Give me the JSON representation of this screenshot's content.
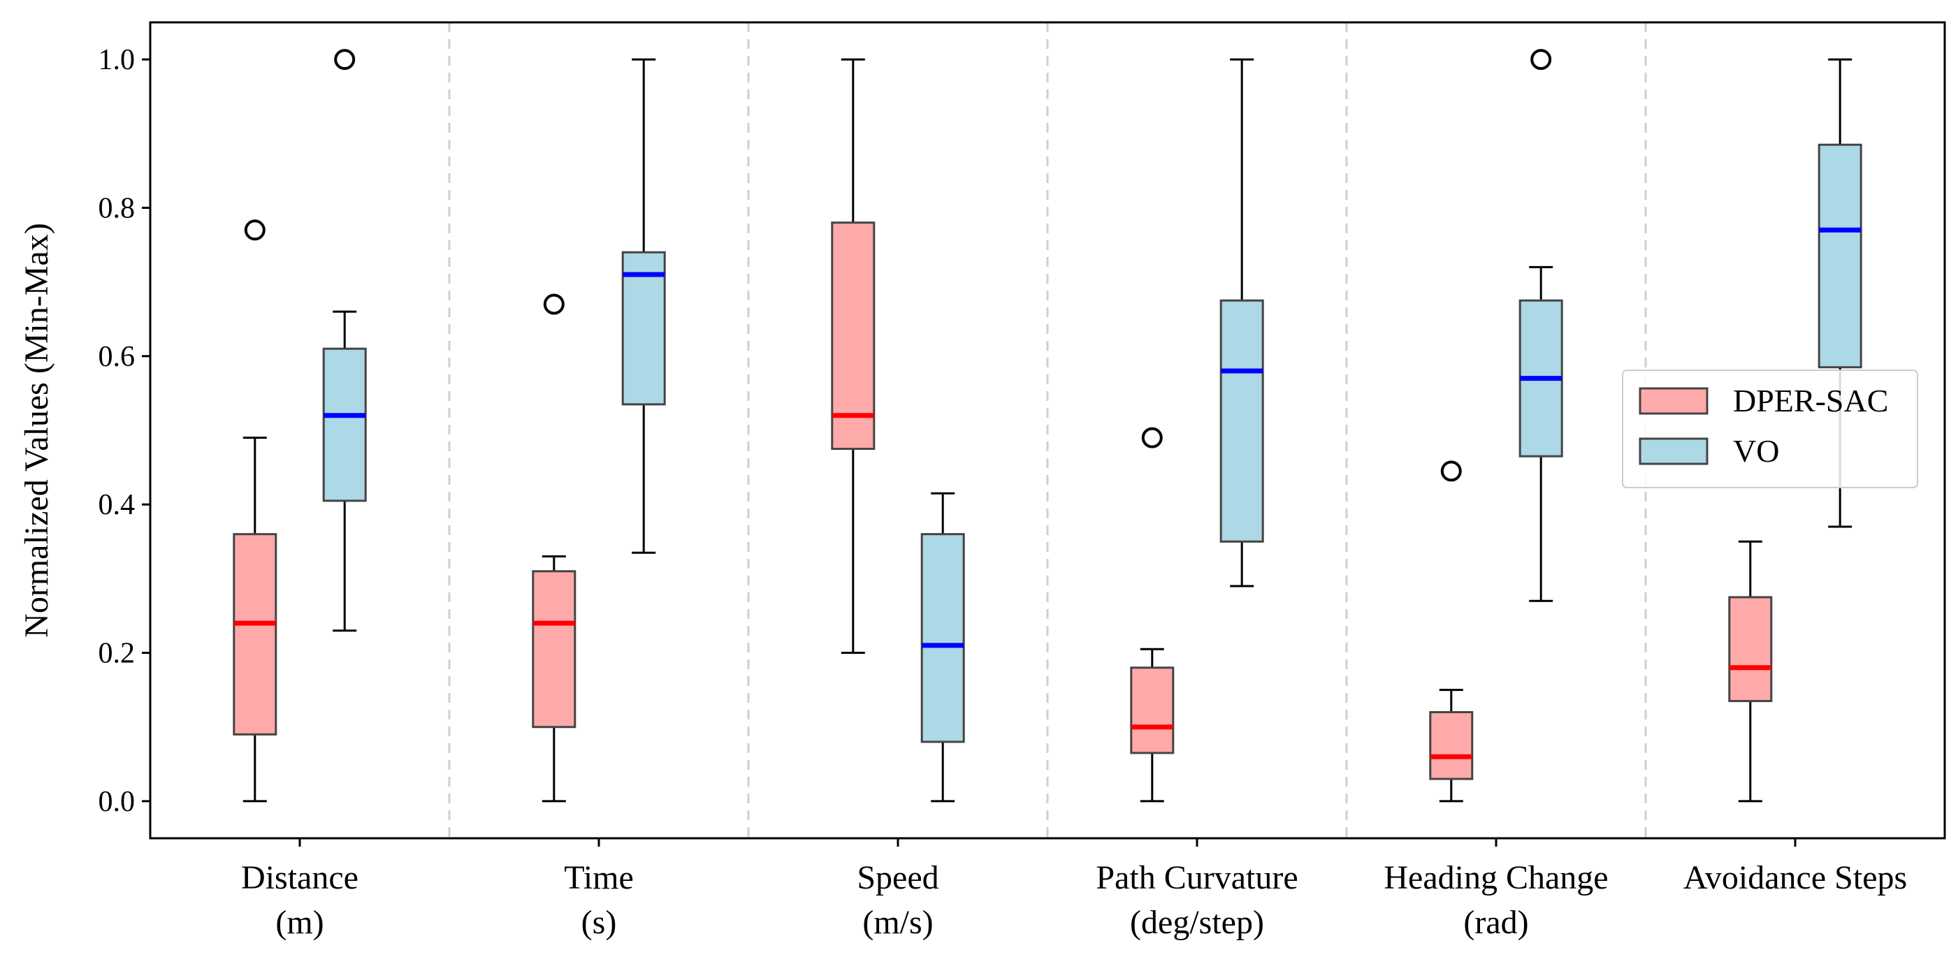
{
  "chart_data": {
    "type": "boxplot",
    "ylabel": "Normalized Values (Min-Max)",
    "ylim": [
      -0.05,
      1.05
    ],
    "yticks": [
      0.0,
      0.2,
      0.4,
      0.6,
      0.8,
      1.0
    ],
    "ytick_labels": [
      "0.0",
      "0.2",
      "0.4",
      "0.6",
      "0.8",
      "1.0"
    ],
    "categories": [
      {
        "line1": "Distance",
        "line2": "(m)"
      },
      {
        "line1": "Time",
        "line2": "(s)"
      },
      {
        "line1": "Speed",
        "line2": "(m/s)"
      },
      {
        "line1": "Path Curvature",
        "line2": "(deg/step)"
      },
      {
        "line1": "Heading Change",
        "line2": "(rad)"
      },
      {
        "line1": "Avoidance Steps",
        "line2": ""
      }
    ],
    "legend_position": "center-right",
    "series": [
      {
        "name": "DPER-SAC",
        "fill": "#ffaaaa",
        "median_color": "#ff0000",
        "boxes": [
          {
            "whislo": 0.0,
            "q1": 0.09,
            "med": 0.24,
            "q3": 0.36,
            "whishi": 0.49,
            "fliers": [
              0.77
            ]
          },
          {
            "whislo": 0.0,
            "q1": 0.1,
            "med": 0.24,
            "q3": 0.31,
            "whishi": 0.33,
            "fliers": [
              0.67
            ]
          },
          {
            "whislo": 0.2,
            "q1": 0.475,
            "med": 0.52,
            "q3": 0.78,
            "whishi": 1.0,
            "fliers": []
          },
          {
            "whislo": 0.0,
            "q1": 0.065,
            "med": 0.1,
            "q3": 0.18,
            "whishi": 0.205,
            "fliers": [
              0.49
            ]
          },
          {
            "whislo": 0.0,
            "q1": 0.03,
            "med": 0.06,
            "q3": 0.12,
            "whishi": 0.15,
            "fliers": [
              0.445
            ]
          },
          {
            "whislo": 0.0,
            "q1": 0.135,
            "med": 0.18,
            "q3": 0.275,
            "whishi": 0.35,
            "fliers": []
          }
        ]
      },
      {
        "name": "VO",
        "fill": "#add8e6",
        "median_color": "#0000ff",
        "boxes": [
          {
            "whislo": 0.23,
            "q1": 0.405,
            "med": 0.52,
            "q3": 0.61,
            "whishi": 0.66,
            "fliers": [
              1.0
            ]
          },
          {
            "whislo": 0.335,
            "q1": 0.535,
            "med": 0.71,
            "q3": 0.74,
            "whishi": 1.0,
            "fliers": []
          },
          {
            "whislo": 0.0,
            "q1": 0.08,
            "med": 0.21,
            "q3": 0.36,
            "whishi": 0.415,
            "fliers": []
          },
          {
            "whislo": 0.29,
            "q1": 0.35,
            "med": 0.58,
            "q3": 0.675,
            "whishi": 1.0,
            "fliers": []
          },
          {
            "whislo": 0.27,
            "q1": 0.465,
            "med": 0.57,
            "q3": 0.675,
            "whishi": 0.72,
            "fliers": [
              1.0
            ]
          },
          {
            "whislo": 0.37,
            "q1": 0.585,
            "med": 0.77,
            "q3": 0.885,
            "whishi": 1.0,
            "fliers": []
          }
        ]
      }
    ]
  }
}
